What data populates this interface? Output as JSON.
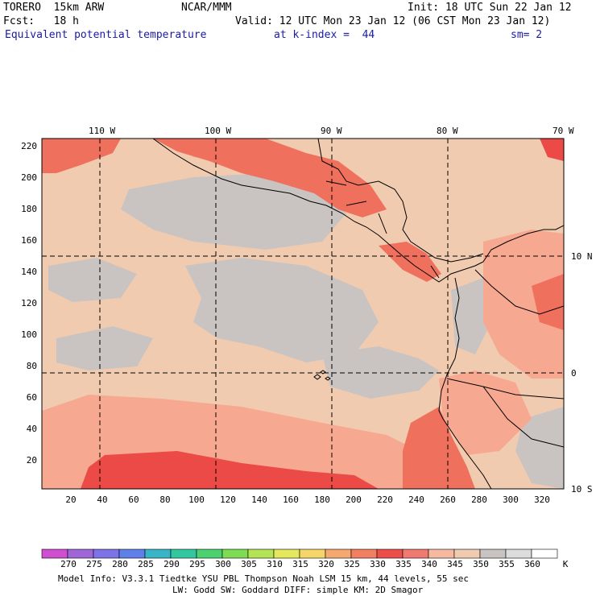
{
  "header": {
    "model": "TORERO  15km ARW",
    "center": "NCAR/MMM",
    "init": "Init: 18 UTC Sun 22 Jan 12",
    "fcst": "Fcst:   18 h",
    "valid": "Valid: 12 UTC Mon 23 Jan 12 (06 CST Mon 23 Jan 12)",
    "field": "Equivalent potential temperature",
    "level": "at k-index =  44",
    "smooth": "sm= 2"
  },
  "map": {
    "lon_labels": [
      "110 W",
      "100 W",
      "90 W",
      "80 W",
      "70 W"
    ],
    "lat_labels": [
      "10 N",
      "0",
      "10 S"
    ],
    "y_ticks": [
      "220",
      "200",
      "180",
      "160",
      "140",
      "120",
      "100",
      "80",
      "60",
      "40",
      "20"
    ],
    "x_ticks": [
      "20",
      "40",
      "60",
      "80",
      "100",
      "120",
      "140",
      "160",
      "180",
      "200",
      "220",
      "240",
      "260",
      "280",
      "300",
      "320"
    ],
    "colors": {
      "background": "#f1cbb0",
      "cool": "#c9c4c1",
      "warm": "#f7a891",
      "hot": "#f0705e",
      "hottest": "#ec4a46",
      "coast": "#000000",
      "grid": "#000000"
    }
  },
  "legend": {
    "values": [
      "270",
      "275",
      "280",
      "285",
      "290",
      "295",
      "300",
      "305",
      "310",
      "315",
      "320",
      "325",
      "330",
      "335",
      "340",
      "345",
      "350",
      "355",
      "360"
    ],
    "unit": "K",
    "colors": [
      "#cf4fd0",
      "#9f66d8",
      "#7d72e8",
      "#5f7fe9",
      "#39b5c8",
      "#33c7a0",
      "#4cd171",
      "#7ddc52",
      "#b3e455",
      "#e4e85c",
      "#f6d668",
      "#f6a96f",
      "#f27f62",
      "#ec4f4a",
      "#f07a70",
      "#f6b9a0",
      "#f1cbb0",
      "#c9c4c1",
      "#dcdcdc",
      "#ffffff"
    ]
  },
  "footer": {
    "line1": "Model Info: V3.3.1    Tiedtke YSU PBL  Thompson     Noah LSM  15 km,   44 levels,   55 sec",
    "line2": "LW: Godd SW: Goddard DIFF: simple KM: 2D Smagor"
  }
}
